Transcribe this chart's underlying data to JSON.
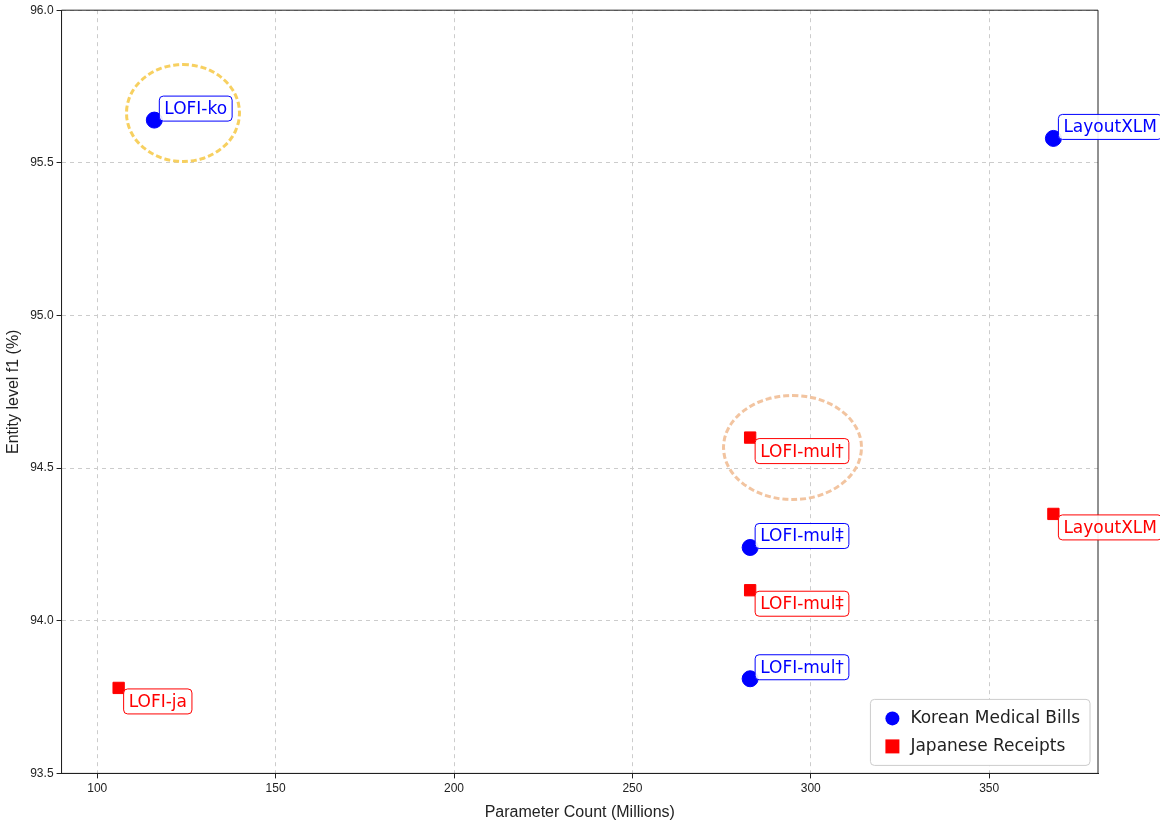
{
  "chart_data": {
    "type": "scatter",
    "xlabel": "Parameter Count (Millions)",
    "ylabel": "Entity level f1 (%)",
    "xlim": [
      90,
      380.5
    ],
    "xticks": [
      100,
      150,
      200,
      250,
      300,
      350
    ],
    "ylim": [
      93.5,
      96.0
    ],
    "yticks": [
      {
        "value": 93.5,
        "label": "93.5"
      },
      {
        "value": 94.0,
        "label": "94.0"
      },
      {
        "value": 94.5,
        "label": "94.5"
      },
      {
        "value": 95.0,
        "label": "95.0"
      },
      {
        "value": 95.5,
        "label": "95.5"
      },
      {
        "value": 96.0,
        "label": "96.0"
      }
    ],
    "grid": true,
    "legend": "bottom right",
    "series": [
      {
        "name": "Korean Medical Bills",
        "color": "#0000ff",
        "marker": "circle",
        "x": [
          116,
          368,
          283,
          283
        ],
        "values": [
          95.64,
          95.58,
          94.24,
          93.81
        ]
      },
      {
        "name": "Japanese Receipts",
        "color": "#ff0000",
        "marker": "square",
        "x": [
          283,
          368,
          283,
          106
        ],
        "values": [
          94.6,
          94.35,
          94.1,
          93.78
        ]
      }
    ],
    "annotations": [
      {
        "text": "LOFI-ko",
        "x": 116,
        "y": 95.64
      },
      {
        "text": "LayoutXLM",
        "x": 368,
        "y": 95.58
      },
      {
        "text": "LOFI-mul‡",
        "x": 283,
        "y": 94.24
      },
      {
        "text": "LOFI-mul†",
        "x": 283,
        "y": 93.81
      },
      {
        "text": "LOFI-mul†",
        "x": 283,
        "y": 94.6
      },
      {
        "text": "LayoutXLM",
        "x": 368,
        "y": 94.35
      },
      {
        "text": "LOFI-mul‡",
        "x": 283,
        "y": 94.1
      },
      {
        "text": "LOFI-ja",
        "x": 106,
        "y": 93.78
      }
    ]
  }
}
